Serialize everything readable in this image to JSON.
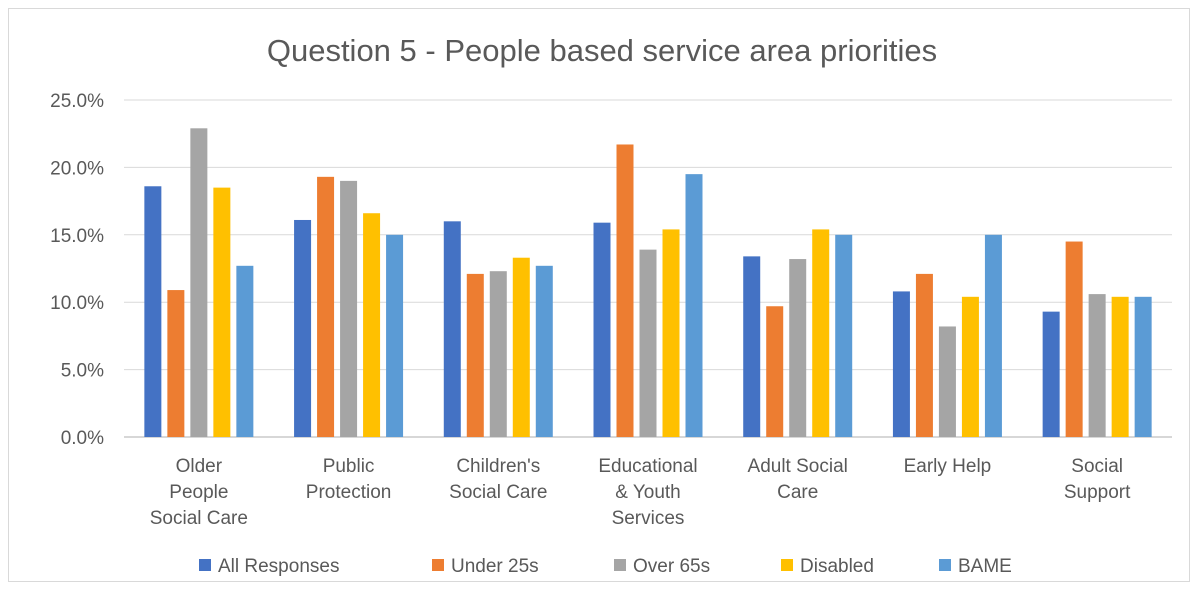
{
  "chart_data": {
    "type": "bar",
    "title": "Question 5 - People based service area priorities",
    "categories": [
      "Older People Social Care",
      "Public Protection",
      "Children's Social Care",
      "Educational & Youth Services",
      "Adult Social Care",
      "Early Help",
      "Social Support"
    ],
    "category_label_lines": [
      [
        "Older",
        "People",
        "Social Care"
      ],
      [
        "Public",
        "Protection"
      ],
      [
        "Children's",
        "Social Care"
      ],
      [
        "Educational",
        "& Youth",
        "Services"
      ],
      [
        "Adult Social",
        "Care"
      ],
      [
        "Early Help"
      ],
      [
        "Social",
        "Support"
      ]
    ],
    "series": [
      {
        "name": "All Responses",
        "color": "#4472C4",
        "values": [
          18.6,
          16.1,
          16.0,
          15.9,
          13.4,
          10.8,
          9.3
        ]
      },
      {
        "name": "Under 25s",
        "color": "#ED7D31",
        "values": [
          10.9,
          19.3,
          12.1,
          21.7,
          9.7,
          12.1,
          14.5
        ]
      },
      {
        "name": "Over 65s",
        "color": "#A5A5A5",
        "values": [
          22.9,
          19.0,
          12.3,
          13.9,
          13.2,
          8.2,
          10.6
        ]
      },
      {
        "name": "Disabled",
        "color": "#FFC000",
        "values": [
          18.5,
          16.6,
          13.3,
          15.4,
          15.4,
          10.4,
          10.4
        ]
      },
      {
        "name": "BAME",
        "color": "#5B9BD5",
        "values": [
          12.7,
          15.0,
          12.7,
          19.5,
          15.0,
          15.0,
          10.4
        ]
      }
    ],
    "y_ticks": [
      "0.0%",
      "5.0%",
      "10.0%",
      "15.0%",
      "20.0%",
      "25.0%"
    ],
    "ylim": [
      0,
      25
    ],
    "unit": "%",
    "grid": true,
    "legend_position": "bottom"
  }
}
